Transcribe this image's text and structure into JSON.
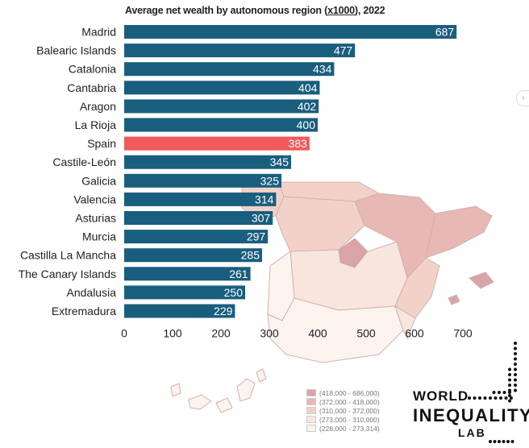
{
  "header": {
    "title_pre": "Average net wealth by autonomous region (",
    "title_unit": "x1000",
    "title_post": "), 2022"
  },
  "chart_data": {
    "type": "bar",
    "orientation": "horizontal",
    "categories": [
      "Madrid",
      "Balearic Islands",
      "Catalonia",
      "Cantabria",
      "Aragon",
      "La Rioja",
      "Spain",
      "Castile-León",
      "Galicia",
      "Valencia",
      "Asturias",
      "Murcia",
      "Castilla La Mancha",
      "The Canary Islands",
      "Andalusia",
      "Extremadura"
    ],
    "values": [
      687,
      477,
      434,
      404,
      402,
      400,
      383,
      345,
      325,
      314,
      307,
      297,
      285,
      261,
      250,
      229
    ],
    "highlight": "Spain",
    "xlim": [
      0,
      700
    ],
    "xticks": [
      0,
      100,
      200,
      300,
      400,
      500,
      600,
      700
    ],
    "grid": false,
    "colors": {
      "bar": "#1a5e7e",
      "highlight": "#f05a5a"
    }
  },
  "map_legend": {
    "items": [
      {
        "label": "(418,000 - 686,000)",
        "color": "#d9a3a8"
      },
      {
        "label": "(372,000 - 418,000)",
        "color": "#e8b8b4"
      },
      {
        "label": "(310,000 - 372,000)",
        "color": "#f2d2c8"
      },
      {
        "label": "(273,000 - 310,000)",
        "color": "#f8e6de"
      },
      {
        "label": "(228,000 - 273,314)",
        "color": "#fcf3ef"
      }
    ]
  },
  "logo": {
    "line1": "WORLD",
    "line2": "INEQUALITY",
    "line3": "LAB"
  },
  "nav": {
    "arrow": "›"
  }
}
